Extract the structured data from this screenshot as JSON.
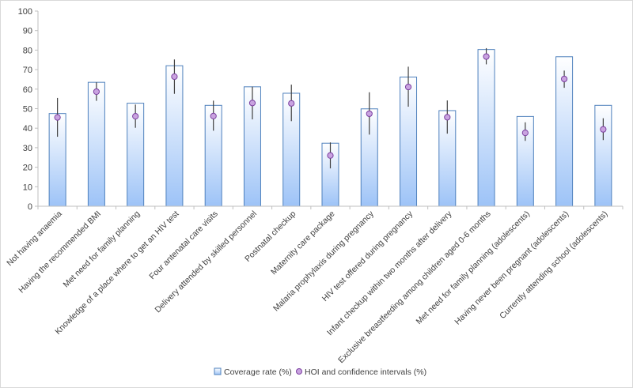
{
  "chart_data": {
    "type": "bar",
    "title": "",
    "xlabel": "",
    "ylabel": "",
    "ylim": [
      0,
      100
    ],
    "yticks": [
      0,
      10,
      20,
      30,
      40,
      50,
      60,
      70,
      80,
      90,
      100
    ],
    "grid": false,
    "legend_position": "bottom",
    "categories": [
      "Not having anaemia",
      "Having the recommended BMI",
      "Met need for family planning",
      "Knowledge of a place where to get an HIV test",
      "Four antenatal care visits",
      "Delivery attended by skilled personnel",
      "Postnatal checkup",
      "Maternity care package",
      "Malaria prophylaxis during pregnancy",
      "HIV test offered during pregnancy",
      "Infant checkup within two months after delivery",
      "Exclusive breastfeeding among children aged 0-6 months",
      "Met need for family planning (adolescents)",
      "Having never been pregnant (adolescents)",
      "Currently attending school (adolescents)"
    ],
    "series": [
      {
        "name": "Coverage rate (%)",
        "kind": "bar",
        "color": "#9dc3f7",
        "values": [
          47.5,
          63.5,
          52.8,
          72.0,
          51.7,
          61.2,
          57.9,
          32.3,
          49.9,
          66.2,
          49.0,
          80.3,
          46.0,
          76.6,
          51.7
        ]
      },
      {
        "name": "HOI and confidence intervals (%)",
        "kind": "point_errorbar",
        "color": "#c9a3e0",
        "values": [
          45.5,
          58.7,
          46.1,
          66.4,
          46.2,
          52.9,
          52.7,
          26.0,
          47.4,
          61.1,
          45.6,
          76.7,
          37.6,
          65.2,
          39.4
        ],
        "lower": [
          35.6,
          54.0,
          40.2,
          57.6,
          38.7,
          44.5,
          43.6,
          19.4,
          36.7,
          51.0,
          37.2,
          72.7,
          33.5,
          60.7,
          33.9
        ],
        "upper": [
          55.5,
          63.5,
          52.1,
          75.2,
          54.1,
          61.3,
          62.3,
          32.7,
          58.4,
          71.5,
          54.2,
          81.0,
          43.0,
          69.5,
          45.1
        ]
      }
    ]
  }
}
